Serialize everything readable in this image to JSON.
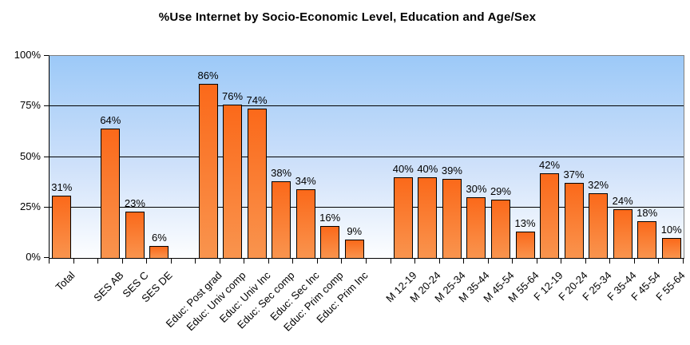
{
  "page": {
    "background": "#ffffff"
  },
  "chart_data": {
    "type": "bar",
    "title": "%Use Internet by Socio-Economic Level, Education and Age/Sex",
    "xlabel": "",
    "ylabel": "",
    "ylim": [
      0,
      100
    ],
    "ytick_percents": [
      0,
      25,
      50,
      75,
      100
    ],
    "ytick_labels": [
      "0%",
      "25%",
      "50%",
      "75%",
      "100%"
    ],
    "gridlines_percent": [
      25,
      50,
      75
    ],
    "legend": "none",
    "categories": [
      "Total",
      "SES AB",
      "SES C",
      "SES DE",
      "Educ: Post grad",
      "Educ: Univ comp",
      "Educ: Univ Inc",
      "Educ: Sec comp",
      "Educ: Sec Inc",
      "Educ: Prim comp",
      "Educ: Prim Inc",
      "M 12-19",
      "M 20-24",
      "M 25-34",
      "M 35-44",
      "M 45-54",
      "M 55-64",
      "F 12-19",
      "F 20-24",
      "F 25-34",
      "F 35-44",
      "F 45-54",
      "F 55-64"
    ],
    "values": [
      31,
      64,
      23,
      6,
      86,
      76,
      74,
      38,
      34,
      16,
      9,
      40,
      40,
      39,
      30,
      29,
      13,
      42,
      37,
      32,
      24,
      18,
      10
    ],
    "data_labels": [
      "31%",
      "64%",
      "23%",
      "6%",
      "86%",
      "76%",
      "74%",
      "38%",
      "34%",
      "16%",
      "9%",
      "40%",
      "40%",
      "39%",
      "30%",
      "29%",
      "13%",
      "42%",
      "37%",
      "32%",
      "24%",
      "18%",
      "10%"
    ],
    "gap_after_indices": [
      0,
      3,
      10
    ],
    "colors": {
      "bar_top": "#fb691a",
      "bar_bottom": "#f9944e",
      "bar_border": "#000000",
      "plot_bg_top": "#9cc9f8",
      "plot_bg_bottom": "#fdfeff",
      "plot_border": "#808080",
      "axis": "#000000",
      "gridline": "#000000",
      "text": "#000000"
    }
  }
}
